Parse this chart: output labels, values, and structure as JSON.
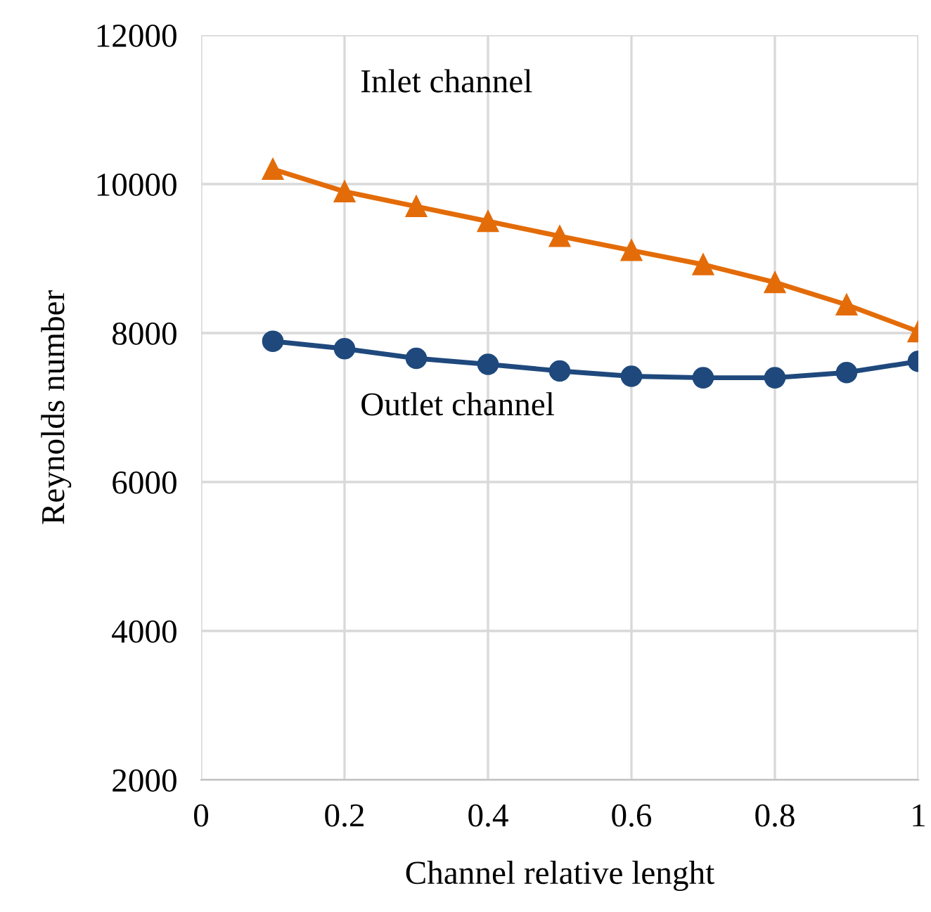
{
  "chart_data": {
    "type": "line",
    "xlabel": "Channel relative lenght",
    "ylabel": "Reynolds number",
    "x": [
      0.1,
      0.2,
      0.3,
      0.4,
      0.5,
      0.6,
      0.7,
      0.8,
      0.9,
      1.0
    ],
    "series": [
      {
        "name": "Inlet channel",
        "color": "#e36c09",
        "marker": "triangle",
        "values": [
          10200,
          9900,
          9700,
          9500,
          9300,
          9110,
          8920,
          8680,
          8380,
          8020
        ]
      },
      {
        "name": "Outlet channel",
        "color": "#1f497d",
        "marker": "circle",
        "values": [
          7890,
          7790,
          7660,
          7580,
          7490,
          7420,
          7400,
          7400,
          7470,
          7620
        ]
      }
    ],
    "xlim": [
      0,
      1
    ],
    "xticks": [
      0,
      0.2,
      0.4,
      0.6,
      0.8,
      1
    ],
    "ylim": [
      2000,
      12000
    ],
    "yticks": [
      2000,
      4000,
      6000,
      8000,
      10000,
      12000
    ],
    "grid": true,
    "line_style": "solid"
  }
}
